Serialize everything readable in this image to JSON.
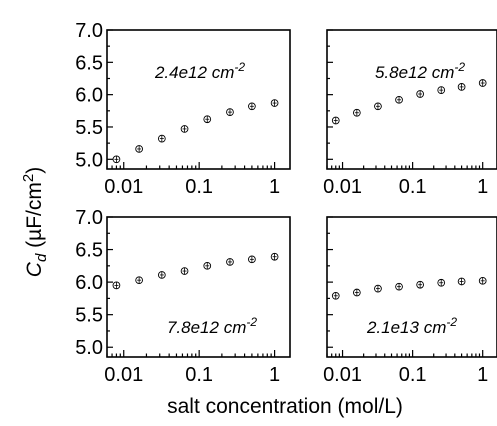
{
  "chart_data": [
    {
      "type": "scatter",
      "panel_label": "2.4e12 cm",
      "panel_label_exp": "-2",
      "x": [
        0.008,
        0.016,
        0.032,
        0.064,
        0.128,
        0.256,
        0.5,
        1.0
      ],
      "y": [
        5.0,
        5.16,
        5.32,
        5.47,
        5.62,
        5.73,
        5.82,
        5.87
      ],
      "xscale": "log",
      "xlim": [
        0.006,
        1.6
      ],
      "ylim": [
        4.85,
        7.0
      ],
      "xticks": [
        "0.01",
        "0.1",
        "1"
      ],
      "yticks": [
        "5.0",
        "5.5",
        "6.0",
        "6.5",
        "7.0"
      ]
    },
    {
      "type": "scatter",
      "panel_label": "5.8e12 cm",
      "panel_label_exp": "-2",
      "x": [
        0.008,
        0.016,
        0.032,
        0.064,
        0.128,
        0.256,
        0.5,
        1.0
      ],
      "y": [
        5.6,
        5.72,
        5.82,
        5.92,
        6.01,
        6.07,
        6.12,
        6.18
      ],
      "xscale": "log",
      "xlim": [
        0.006,
        1.6
      ],
      "ylim": [
        4.85,
        7.0
      ],
      "xticks": [
        "0.01",
        "0.1",
        "1"
      ],
      "yticks": []
    },
    {
      "type": "scatter",
      "panel_label": "7.8e12 cm",
      "panel_label_exp": "-2",
      "x": [
        0.008,
        0.016,
        0.032,
        0.064,
        0.128,
        0.256,
        0.5,
        1.0
      ],
      "y": [
        5.95,
        6.03,
        6.11,
        6.17,
        6.25,
        6.31,
        6.35,
        6.39
      ],
      "xscale": "log",
      "xlim": [
        0.006,
        1.6
      ],
      "ylim": [
        4.85,
        7.0
      ],
      "xticks": [
        "0.01",
        "0.1",
        "1"
      ],
      "yticks": [
        "5.0",
        "5.5",
        "6.0",
        "6.5",
        "7.0"
      ]
    },
    {
      "type": "scatter",
      "panel_label": "2.1e13 cm",
      "panel_label_exp": "-2",
      "x": [
        0.008,
        0.016,
        0.032,
        0.064,
        0.128,
        0.256,
        0.5,
        1.0
      ],
      "y": [
        5.79,
        5.84,
        5.9,
        5.93,
        5.96,
        5.99,
        6.01,
        6.02
      ],
      "xscale": "log",
      "xlim": [
        0.006,
        1.6
      ],
      "ylim": [
        4.85,
        7.0
      ],
      "xticks": [
        "0.01",
        "0.1",
        "1"
      ],
      "yticks": []
    }
  ],
  "axes": {
    "ylabel_main": "C",
    "ylabel_sub": "d",
    "ylabel_rest": " (µF/cm",
    "ylabel_sup": "2",
    "ylabel_close": ")",
    "xlabel": "salt concentration (mol/L)"
  }
}
